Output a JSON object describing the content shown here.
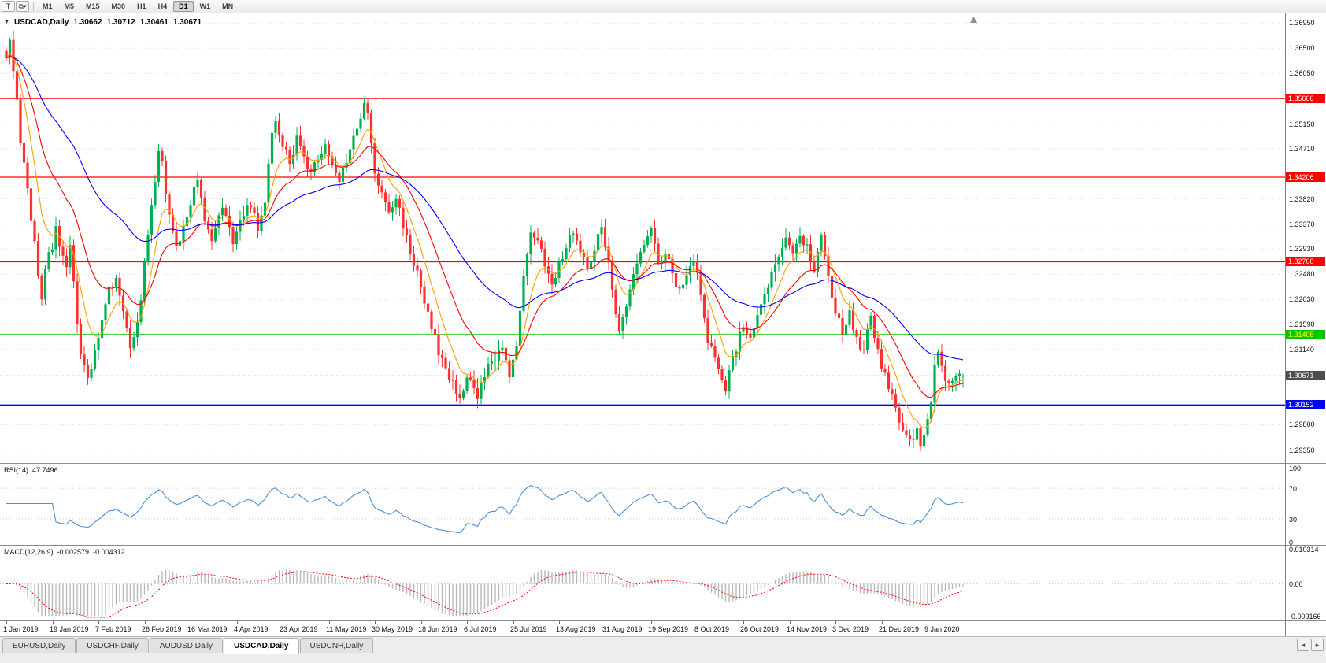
{
  "window": {
    "tool_button_label": "T",
    "icons": {
      "windows": "⧉",
      "caret": "▾"
    },
    "timeframes": [
      "M1",
      "M5",
      "M15",
      "M30",
      "H1",
      "H4",
      "D1",
      "W1",
      "MN"
    ],
    "active_timeframe": "D1"
  },
  "chart": {
    "title": {
      "menu_glyph": "▼",
      "symbol_period": "USDCAD,Daily",
      "open": "1.30662",
      "high": "1.30712",
      "low": "1.30461",
      "close": "1.30671"
    },
    "price_axis_grid": [
      {
        "text": "1.36950",
        "price": 1.3695
      },
      {
        "text": "1.36500",
        "price": 1.365
      },
      {
        "text": "1.36050",
        "price": 1.3605
      },
      {
        "text": "1.35150",
        "price": 1.3515
      },
      {
        "text": "1.34710",
        "price": 1.3471
      },
      {
        "text": "1.33820",
        "price": 1.3382
      },
      {
        "text": "1.33370",
        "price": 1.3337
      },
      {
        "text": "1.32930",
        "price": 1.3293
      },
      {
        "text": "1.32480",
        "price": 1.3248
      },
      {
        "text": "1.32030",
        "price": 1.3203
      },
      {
        "text": "1.31590",
        "price": 1.3159
      },
      {
        "text": "1.31140",
        "price": 1.3114
      },
      {
        "text": "1.29800",
        "price": 1.298
      },
      {
        "text": "1.29350",
        "price": 1.2935
      }
    ],
    "indicators": {
      "rsi": {
        "name": "RSI(14)",
        "value": "47.7496",
        "color": "#4a90d8",
        "levels": [
          70,
          30
        ],
        "axis": [
          {
            "text": "100",
            "value": 100
          },
          {
            "text": "70",
            "value": 70
          },
          {
            "text": "30",
            "value": 30
          },
          {
            "text": "0",
            "value": 0
          }
        ]
      },
      "macd": {
        "name": "MACD(12,26,9)",
        "main_value": "-0.002579",
        "signal_value": "-0.004312",
        "histogram_color": "#b8b8b8",
        "signal_color": "#ff0000",
        "scale_max": 0.0104,
        "scale_min": -0.0095,
        "axis": [
          {
            "text": "0.010314",
            "value": 0.010314
          },
          {
            "text": "0.00",
            "value": 0
          },
          {
            "text": "-0.009166",
            "value": -0.009166
          }
        ]
      }
    }
  },
  "chart_data": {
    "type": "candlestick",
    "symbol": "USDCAD",
    "timeframe": "Daily",
    "price_range": [
      1.2912,
      1.3712
    ],
    "bars_count": 271,
    "bars_per_label": 13,
    "current_bar": {
      "open": 1.30662,
      "high": 1.30712,
      "low": 1.30461,
      "close": 1.30671
    },
    "bid_line": {
      "price": 1.30671,
      "label": "1.30671",
      "badge_color": "#4d4d4d"
    },
    "hlines": [
      {
        "price": 1.35606,
        "label": "1.35606",
        "color": "#ff0000",
        "text_color": "#ffffff",
        "role": "resistance"
      },
      {
        "price": 1.34206,
        "label": "1.34206",
        "color": "#ff0000",
        "text_color": "#ffffff",
        "role": "resistance"
      },
      {
        "price": 1.327,
        "label": "1.32700",
        "color": "#ff0000",
        "text_color": "#ffffff",
        "role": "resistance"
      },
      {
        "price": 1.31405,
        "label": "1.31405",
        "color": "#00c800",
        "text_color": "#ffff00",
        "role": "support"
      },
      {
        "price": 1.30152,
        "label": "1.30152",
        "color": "#0000ff",
        "text_color": "#ffffff",
        "role": "support"
      }
    ],
    "moving_averages": [
      {
        "period": 8,
        "color": "#ffa000"
      },
      {
        "period": 20,
        "color": "#ff0000"
      },
      {
        "period": 50,
        "color": "#0000ff"
      }
    ],
    "dates": [
      "1 Jan 2019",
      "19 Jan 2019",
      "7 Feb 2019",
      "26 Feb 2019",
      "16 Mar 2019",
      "4 Apr 2019",
      "23 Apr 2019",
      "11 May 2019",
      "30 May 2019",
      "18 Jun 2019",
      "6 Jul 2019",
      "25 Jul 2019",
      "13 Aug 2019",
      "31 Aug 2019",
      "19 Sep 2019",
      "8 Oct 2019",
      "26 Oct 2019",
      "14 Nov 2019",
      "3 Dec 2019",
      "21 Dec 2019",
      "9 Jan 2020"
    ],
    "close_path_anchors": [
      [
        0,
        1.3642
      ],
      [
        1,
        1.3656
      ],
      [
        2,
        1.3618
      ],
      [
        3,
        1.3552
      ],
      [
        4,
        1.3478
      ],
      [
        6,
        1.3398
      ],
      [
        8,
        1.3302
      ],
      [
        9,
        1.3248
      ],
      [
        10,
        1.3208
      ],
      [
        11,
        1.3262
      ],
      [
        13,
        1.3298
      ],
      [
        14,
        1.3338
      ],
      [
        15,
        1.3292
      ],
      [
        17,
        1.3252
      ],
      [
        18,
        1.3293
      ],
      [
        19,
        1.3232
      ],
      [
        20,
        1.3168
      ],
      [
        21,
        1.3108
      ],
      [
        23,
        1.3062
      ],
      [
        25,
        1.3112
      ],
      [
        27,
        1.316
      ],
      [
        29,
        1.3218
      ],
      [
        31,
        1.3248
      ],
      [
        32,
        1.3205
      ],
      [
        34,
        1.3158
      ],
      [
        35,
        1.3122
      ],
      [
        37,
        1.3158
      ],
      [
        38,
        1.3205
      ],
      [
        39,
        1.3262
      ],
      [
        40,
        1.3318
      ],
      [
        42,
        1.3412
      ],
      [
        43,
        1.3465
      ],
      [
        44,
        1.3442
      ],
      [
        45,
        1.3396
      ],
      [
        47,
        1.3328
      ],
      [
        48,
        1.3292
      ],
      [
        50,
        1.3332
      ],
      [
        52,
        1.3378
      ],
      [
        54,
        1.3415
      ],
      [
        55,
        1.3388
      ],
      [
        56,
        1.3342
      ],
      [
        58,
        1.3302
      ],
      [
        59,
        1.3332
      ],
      [
        61,
        1.3368
      ],
      [
        63,
        1.3338
      ],
      [
        64,
        1.3305
      ],
      [
        66,
        1.3342
      ],
      [
        68,
        1.3378
      ],
      [
        70,
        1.3352
      ],
      [
        71,
        1.3318
      ],
      [
        73,
        1.3382
      ],
      [
        74,
        1.3438
      ],
      [
        75,
        1.3492
      ],
      [
        76,
        1.3512
      ],
      [
        78,
        1.3478
      ],
      [
        80,
        1.3448
      ],
      [
        82,
        1.3488
      ],
      [
        84,
        1.3452
      ],
      [
        86,
        1.3422
      ],
      [
        88,
        1.3458
      ],
      [
        90,
        1.3478
      ],
      [
        92,
        1.3438
      ],
      [
        94,
        1.3418
      ],
      [
        96,
        1.3452
      ],
      [
        98,
        1.3488
      ],
      [
        100,
        1.3522
      ],
      [
        101,
        1.3548
      ],
      [
        102,
        1.3538
      ],
      [
        103,
        1.3475
      ],
      [
        104,
        1.3428
      ],
      [
        106,
        1.3388
      ],
      [
        108,
        1.3358
      ],
      [
        110,
        1.3382
      ],
      [
        112,
        1.3338
      ],
      [
        114,
        1.3288
      ],
      [
        116,
        1.3248
      ],
      [
        118,
        1.3192
      ],
      [
        120,
        1.3158
      ],
      [
        122,
        1.3108
      ],
      [
        124,
        1.3082
      ],
      [
        126,
        1.3052
      ],
      [
        128,
        1.3032
      ],
      [
        130,
        1.3062
      ],
      [
        132,
        1.3042
      ],
      [
        133,
        1.3022
      ],
      [
        134,
        1.3048
      ],
      [
        136,
        1.3082
      ],
      [
        138,
        1.3102
      ],
      [
        140,
        1.3122
      ],
      [
        141,
        1.3088
      ],
      [
        142,
        1.3062
      ],
      [
        143,
        1.3088
      ],
      [
        144,
        1.3128
      ],
      [
        145,
        1.3178
      ],
      [
        146,
        1.3238
      ],
      [
        147,
        1.3288
      ],
      [
        148,
        1.3328
      ],
      [
        150,
        1.3308
      ],
      [
        152,
        1.3268
      ],
      [
        154,
        1.3238
      ],
      [
        156,
        1.3262
      ],
      [
        158,
        1.3298
      ],
      [
        160,
        1.3328
      ],
      [
        162,
        1.3288
      ],
      [
        164,
        1.3258
      ],
      [
        166,
        1.3298
      ],
      [
        168,
        1.3328
      ],
      [
        170,
        1.3278
      ],
      [
        171,
        1.3228
      ],
      [
        172,
        1.3178
      ],
      [
        173,
        1.3142
      ],
      [
        174,
        1.3168
      ],
      [
        176,
        1.3218
      ],
      [
        178,
        1.3268
      ],
      [
        180,
        1.3308
      ],
      [
        182,
        1.3338
      ],
      [
        183,
        1.3298
      ],
      [
        184,
        1.3268
      ],
      [
        186,
        1.3288
      ],
      [
        188,
        1.3248
      ],
      [
        190,
        1.3218
      ],
      [
        192,
        1.3248
      ],
      [
        194,
        1.3278
      ],
      [
        195,
        1.3248
      ],
      [
        196,
        1.3208
      ],
      [
        197,
        1.3168
      ],
      [
        198,
        1.3128
      ],
      [
        200,
        1.3098
      ],
      [
        202,
        1.3068
      ],
      [
        203,
        1.3048
      ],
      [
        204,
        1.3078
      ],
      [
        206,
        1.3118
      ],
      [
        208,
        1.3158
      ],
      [
        210,
        1.3128
      ],
      [
        212,
        1.3168
      ],
      [
        214,
        1.3208
      ],
      [
        216,
        1.3248
      ],
      [
        218,
        1.3288
      ],
      [
        220,
        1.3308
      ],
      [
        222,
        1.3288
      ],
      [
        224,
        1.3318
      ],
      [
        226,
        1.3298
      ],
      [
        228,
        1.3258
      ],
      [
        229,
        1.3288
      ],
      [
        230,
        1.3318
      ],
      [
        231,
        1.3288
      ],
      [
        232,
        1.3248
      ],
      [
        233,
        1.3208
      ],
      [
        234,
        1.3178
      ],
      [
        236,
        1.3148
      ],
      [
        238,
        1.3178
      ],
      [
        240,
        1.3138
      ],
      [
        242,
        1.3108
      ],
      [
        243,
        1.3148
      ],
      [
        244,
        1.3178
      ],
      [
        245,
        1.3138
      ],
      [
        246,
        1.3108
      ],
      [
        248,
        1.3068
      ],
      [
        250,
        1.3028
      ],
      [
        252,
        1.2988
      ],
      [
        254,
        1.2962
      ],
      [
        256,
        1.2948
      ],
      [
        257,
        1.2972
      ],
      [
        258,
        1.2942
      ],
      [
        259,
        1.2958
      ],
      [
        260,
        1.2988
      ],
      [
        261,
        1.3018
      ],
      [
        262,
        1.3078
      ],
      [
        263,
        1.3112
      ],
      [
        264,
        1.3088
      ],
      [
        265,
        1.3058
      ],
      [
        266,
        1.3048
      ],
      [
        268,
        1.3062
      ],
      [
        270,
        1.30671
      ]
    ]
  },
  "tabs": {
    "items": [
      {
        "label": "EURUSD,Daily",
        "active": false
      },
      {
        "label": "USDCHF,Daily",
        "active": false
      },
      {
        "label": "AUDUSD,Daily",
        "active": false
      },
      {
        "label": "USDCAD,Daily",
        "active": true
      },
      {
        "label": "USDCNH,Daily",
        "active": false
      }
    ],
    "scroll_left_glyph": "◂",
    "scroll_right_glyph": "▸"
  },
  "colors": {
    "bull": "#00b050",
    "bear": "#ff3030",
    "grid": "#dcdcdc",
    "bid_line": "#b0b0b0"
  }
}
